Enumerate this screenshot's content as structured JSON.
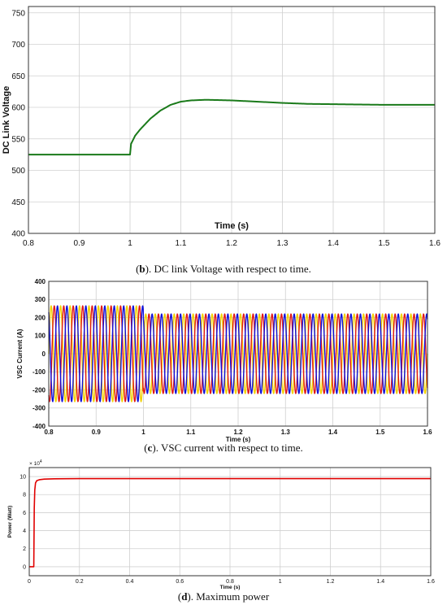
{
  "captions": {
    "b_letter": "b",
    "b_text": "). DC link Voltage with respect to time.",
    "c_letter": "c",
    "c_text": "). VSC current with respect to time.",
    "d_letter": "d",
    "d_text": "). Maximum power"
  },
  "chart_data": [
    {
      "id": "b",
      "type": "line",
      "title": "",
      "xlabel": "Time (s)",
      "ylabel": "DC Link Voltage",
      "xlim": [
        0.8,
        1.6
      ],
      "ylim": [
        400,
        760
      ],
      "xticks": [
        "0.8",
        "0.9",
        "1",
        "1.1",
        "1.2",
        "1.3",
        "1.4",
        "1.5",
        "1.6"
      ],
      "yticks": [
        "400",
        "450",
        "500",
        "550",
        "600",
        "650",
        "700",
        "750"
      ],
      "grid": true,
      "color": "#1a7a1a",
      "series": [
        {
          "x": [
            0.8,
            0.9,
            1.0,
            1.002,
            1.01,
            1.02,
            1.04,
            1.06,
            1.08,
            1.1,
            1.12,
            1.15,
            1.2,
            1.25,
            1.3,
            1.35,
            1.4,
            1.45,
            1.5,
            1.55,
            1.6
          ],
          "y": [
            525,
            525,
            525,
            542,
            555,
            565,
            582,
            595,
            604,
            609,
            611,
            612,
            611,
            609,
            607,
            605.5,
            605,
            604.5,
            604,
            604,
            604
          ]
        }
      ]
    },
    {
      "id": "c",
      "type": "line",
      "title": "",
      "xlabel": "Time (s)",
      "ylabel": "VSC Current (A)",
      "xlim": [
        0.8,
        1.6
      ],
      "ylim": [
        -400,
        400
      ],
      "xticks": [
        "0.8",
        "0.9",
        "1",
        "1.1",
        "1.2",
        "1.3",
        "1.4",
        "1.5",
        "1.6"
      ],
      "yticks": [
        "-400",
        "-300",
        "-200",
        "-100",
        "0",
        "100",
        "200",
        "300",
        "400"
      ],
      "grid": true,
      "frequency_hz": 50,
      "change_time": 1.0,
      "amplitude_before": 265,
      "amplitude_after": 220,
      "phases": [
        {
          "color": "#f0d000",
          "phase_deg": 0
        },
        {
          "color": "#e01818",
          "phase_deg": -120
        },
        {
          "color": "#1010d8",
          "phase_deg": 120
        }
      ]
    },
    {
      "id": "d",
      "type": "line",
      "title": "",
      "xlabel": "Time (s)",
      "ylabel": "Power (Watt)",
      "exponent_label": "× 10",
      "exponent": "4",
      "xlim": [
        0,
        1.6
      ],
      "ylim": [
        -1,
        11
      ],
      "xticks": [
        "0",
        "0.2",
        "0.4",
        "0.6",
        "0.8",
        "1",
        "1.2",
        "1.4",
        "1.6"
      ],
      "yticks": [
        "0",
        "2",
        "4",
        "6",
        "8",
        "10"
      ],
      "grid": true,
      "color": "#e00000",
      "series": [
        {
          "x": [
            0,
            0.018,
            0.02,
            0.022,
            0.025,
            0.03,
            0.04,
            0.06,
            0.1,
            0.2,
            1.6
          ],
          "y": [
            0,
            0,
            6.5,
            8.5,
            9.3,
            9.55,
            9.65,
            9.72,
            9.75,
            9.78,
            9.78
          ]
        }
      ]
    }
  ]
}
